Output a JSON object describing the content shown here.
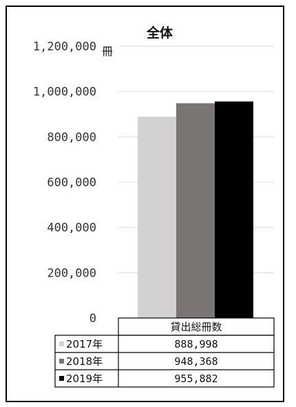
{
  "chart_data": {
    "type": "bar",
    "title": "全体",
    "unit_label": "冊",
    "categories": [
      "貸出総冊数"
    ],
    "ylim": [
      0,
      1200000
    ],
    "y_ticks": [
      "1,200,000",
      "1,000,000",
      "800,000",
      "600,000",
      "400,000",
      "200,000",
      "0"
    ],
    "series": [
      {
        "name": "2017年",
        "values": [
          888998
        ],
        "value_label": "888,998",
        "color": "#d4d1d1"
      },
      {
        "name": "2018年",
        "values": [
          948368
        ],
        "value_label": "948,368",
        "color": "#7a7573"
      },
      {
        "name": "2019年",
        "values": [
          955882
        ],
        "value_label": "955,882",
        "color": "#000000"
      }
    ],
    "grid": true,
    "data_table": true
  }
}
